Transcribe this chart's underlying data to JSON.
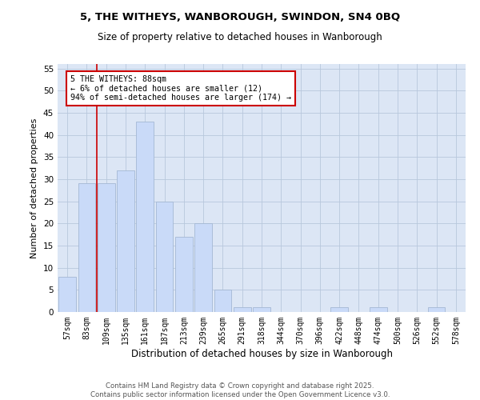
{
  "title_line1": "5, THE WITHEYS, WANBOROUGH, SWINDON, SN4 0BQ",
  "title_line2": "Size of property relative to detached houses in Wanborough",
  "xlabel": "Distribution of detached houses by size in Wanborough",
  "ylabel": "Number of detached properties",
  "bins": [
    "57sqm",
    "83sqm",
    "109sqm",
    "135sqm",
    "161sqm",
    "187sqm",
    "213sqm",
    "239sqm",
    "265sqm",
    "291sqm",
    "318sqm",
    "344sqm",
    "370sqm",
    "396sqm",
    "422sqm",
    "448sqm",
    "474sqm",
    "500sqm",
    "526sqm",
    "552sqm",
    "578sqm"
  ],
  "values": [
    8,
    29,
    29,
    32,
    43,
    25,
    17,
    20,
    5,
    1,
    1,
    0,
    0,
    0,
    1,
    0,
    1,
    0,
    0,
    1,
    0
  ],
  "bar_color": "#c9daf8",
  "bar_edge_color": "#a4b8d4",
  "grid_color": "#b8c8dc",
  "bg_color": "#dce6f5",
  "vline_color": "#cc0000",
  "annotation_text": "5 THE WITHEYS: 88sqm\n← 6% of detached houses are smaller (12)\n94% of semi-detached houses are larger (174) →",
  "annotation_box_color": "#cc0000",
  "ylim": [
    0,
    56
  ],
  "yticks": [
    0,
    5,
    10,
    15,
    20,
    25,
    30,
    35,
    40,
    45,
    50,
    55
  ],
  "footer_line1": "Contains HM Land Registry data © Crown copyright and database right 2025.",
  "footer_line2": "Contains public sector information licensed under the Open Government Licence v3.0."
}
